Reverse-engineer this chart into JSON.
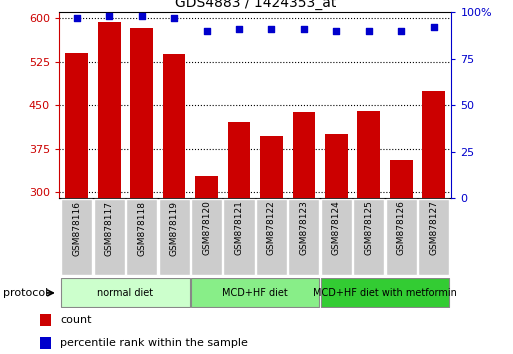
{
  "title": "GDS4883 / 1424353_at",
  "samples": [
    "GSM878116",
    "GSM878117",
    "GSM878118",
    "GSM878119",
    "GSM878120",
    "GSM878121",
    "GSM878122",
    "GSM878123",
    "GSM878124",
    "GSM878125",
    "GSM878126",
    "GSM878127"
  ],
  "counts": [
    540,
    593,
    583,
    538,
    328,
    422,
    398,
    438,
    400,
    440,
    355,
    475
  ],
  "percentile_ranks": [
    97,
    98,
    98,
    97,
    90,
    91,
    91,
    91,
    90,
    90,
    90,
    92
  ],
  "ymin": 290,
  "ymax": 610,
  "yticks": [
    300,
    375,
    450,
    525,
    600
  ],
  "right_yticks": [
    0,
    25,
    50,
    75,
    100
  ],
  "bar_color": "#cc0000",
  "dot_color": "#0000cc",
  "groups": [
    {
      "label": "normal diet",
      "start": 0,
      "end": 4,
      "color": "#ccffcc"
    },
    {
      "label": "MCD+HF diet",
      "start": 4,
      "end": 8,
      "color": "#88ee88"
    },
    {
      "label": "MCD+HF diet with metformin",
      "start": 8,
      "end": 12,
      "color": "#33cc33"
    }
  ],
  "protocol_label": "protocol",
  "legend_count_label": "count",
  "legend_percentile_label": "percentile rank within the sample",
  "left_axis_color": "#cc0000",
  "right_axis_color": "#0000cc",
  "tick_label_bg": "#cccccc",
  "bg_color": "#ffffff"
}
